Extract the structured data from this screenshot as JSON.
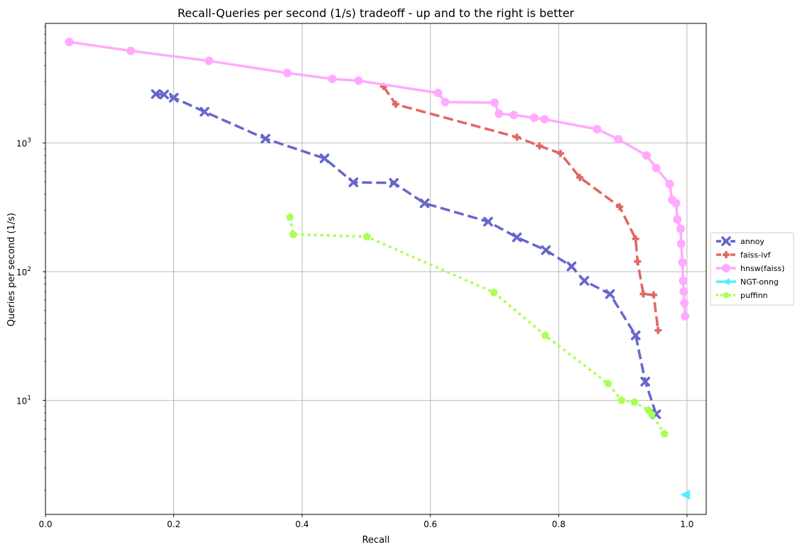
{
  "chart_data": {
    "type": "line",
    "title": "Recall-Queries per second (1/s) tradeoff - up and to the right is better",
    "xlabel": "Recall",
    "ylabel": "Queries per second (1/s)",
    "xlim": [
      0.0,
      1.03
    ],
    "ylim": [
      1.3,
      8500
    ],
    "yscale": "log",
    "grid": true,
    "legend_position": "right, outside plot",
    "x_ticks": [
      {
        "value": 0.0,
        "label": "0.0"
      },
      {
        "value": 0.2,
        "label": "0.2"
      },
      {
        "value": 0.4,
        "label": "0.4"
      },
      {
        "value": 0.6,
        "label": "0.6"
      },
      {
        "value": 0.8,
        "label": "0.8"
      },
      {
        "value": 1.0,
        "label": "1.0"
      }
    ],
    "y_ticks": [
      {
        "value": 10,
        "base": "10",
        "exp": "1"
      },
      {
        "value": 100,
        "base": "10",
        "exp": "2"
      },
      {
        "value": 1000,
        "base": "10",
        "exp": "3"
      }
    ],
    "series": [
      {
        "name": "annoy",
        "color": "#6666cc",
        "line": "dashed",
        "marker": "x",
        "x": [
          0.172,
          0.185,
          0.2,
          0.248,
          0.343,
          0.435,
          0.48,
          0.543,
          0.591,
          0.69,
          0.735,
          0.78,
          0.82,
          0.84,
          0.88,
          0.92,
          0.935,
          0.952
        ],
        "y": [
          2400,
          2380,
          2250,
          1750,
          1080,
          760,
          495,
          490,
          340,
          245,
          185,
          147,
          110,
          85,
          67,
          32,
          14,
          7.8
        ]
      },
      {
        "name": "faiss-ivf",
        "color": "#e06666",
        "line": "dashed",
        "marker": "plus",
        "x": [
          0.527,
          0.546,
          0.735,
          0.77,
          0.803,
          0.833,
          0.895,
          0.92,
          0.923,
          0.932,
          0.948,
          0.955
        ],
        "y": [
          2750,
          2000,
          1110,
          950,
          830,
          540,
          320,
          180,
          120,
          67,
          66,
          35
        ]
      },
      {
        "name": "hnsw(faiss)",
        "color": "#ffaaff",
        "line": "solid",
        "marker": "circle",
        "x": [
          0.037,
          0.133,
          0.255,
          0.377,
          0.447,
          0.488,
          0.612,
          0.623,
          0.7,
          0.707,
          0.73,
          0.762,
          0.778,
          0.86,
          0.893,
          0.937,
          0.952,
          0.973,
          0.977,
          0.983,
          0.985,
          0.99,
          0.991,
          0.993,
          0.994,
          0.995,
          0.996,
          0.997
        ],
        "y": [
          6100,
          5200,
          4350,
          3500,
          3150,
          3050,
          2450,
          2080,
          2060,
          1690,
          1650,
          1570,
          1530,
          1280,
          1070,
          800,
          640,
          480,
          360,
          340,
          255,
          215,
          165,
          118,
          85,
          70,
          57,
          45
        ]
      },
      {
        "name": "NGT-onng",
        "color": "#55eeff",
        "line": "solid",
        "marker": "triangle-left",
        "x": [
          0.997
        ],
        "y": [
          1.85
        ]
      },
      {
        "name": "puffinn",
        "color": "#aaff55",
        "line": "dotted",
        "marker": "pentagon",
        "x": [
          0.381,
          0.386,
          0.501,
          0.699,
          0.779,
          0.877,
          0.898,
          0.918,
          0.94,
          0.945,
          0.965
        ],
        "y": [
          265,
          195,
          187,
          69,
          32,
          13.5,
          10,
          9.7,
          8.4,
          7.8,
          5.5
        ]
      }
    ]
  }
}
